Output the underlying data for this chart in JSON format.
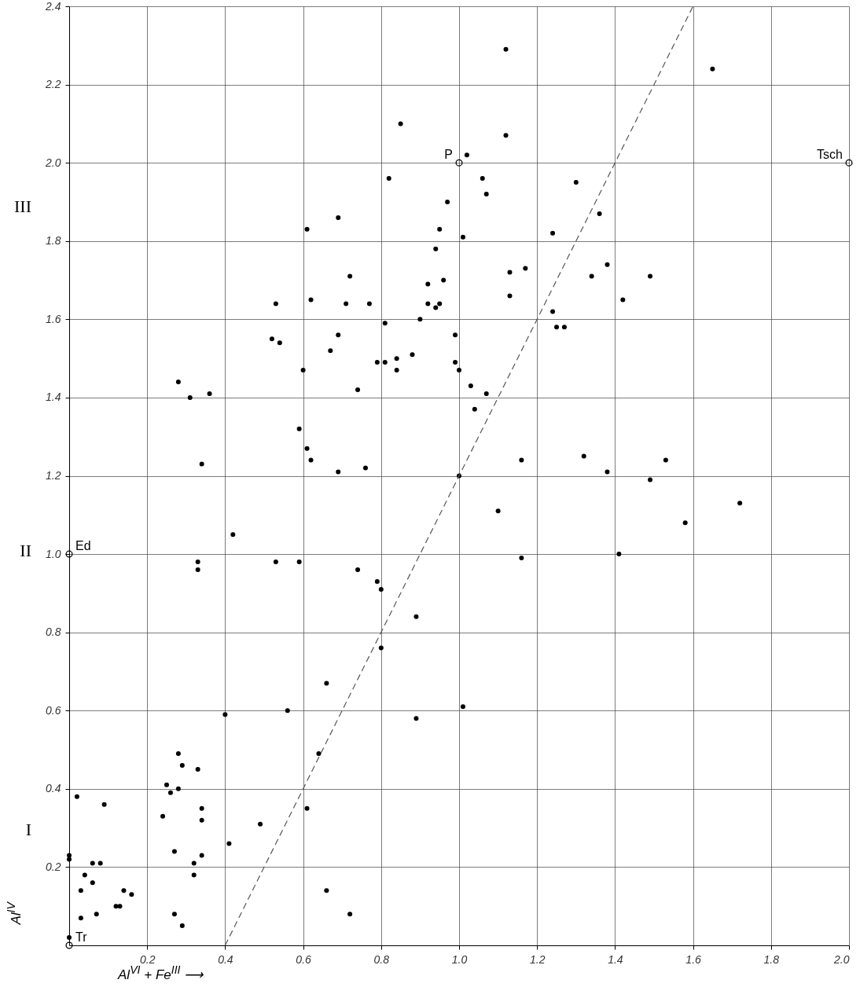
{
  "chart_data": {
    "type": "scatter",
    "xlabel": "Al$^{VI}$ + Fe$^{III}$ ⟶",
    "ylabel": "Al$^{IV}$",
    "xlim": [
      0,
      2.0
    ],
    "ylim": [
      0,
      2.4
    ],
    "xticks": [
      0.2,
      0.4,
      0.6,
      0.8,
      {
        "value": 1.0,
        "label": "1.0"
      },
      1.2,
      1.4,
      1.6,
      1.8,
      {
        "value": 2.0,
        "label": "2.0"
      }
    ],
    "yticks": [
      0.2,
      0.4,
      0.6,
      0.8,
      {
        "value": 1.0,
        "label": "1.0"
      },
      1.2,
      1.4,
      1.6,
      1.8,
      {
        "value": 2.0,
        "label": "2.0"
      },
      2.2,
      2.4
    ],
    "grid": true,
    "series": [
      {
        "color": "#000000",
        "marker": "circle",
        "x": [
          1.12,
          1.65,
          0.85,
          1.12,
          1.02,
          0.82,
          1.06,
          1.07,
          1.3,
          0.97,
          0.69,
          1.36,
          0.61,
          0.95,
          1.01,
          1.24,
          0.94,
          1.13,
          1.17,
          0.72,
          1.34,
          1.38,
          1.49,
          0.96,
          0.92,
          1.13,
          0.53,
          0.71,
          0.77,
          0.92,
          0.95,
          0.94,
          0.62,
          1.42,
          0.9,
          0.81,
          1.24,
          1.25,
          1.27,
          0.52,
          0.54,
          0.69,
          0.99,
          0.67,
          0.84,
          0.88,
          0.79,
          0.81,
          0.6,
          0.84,
          0.74,
          0.99,
          1.0,
          1.03,
          1.04,
          1.07,
          0.28,
          0.31,
          0.36,
          0.34,
          0.59,
          0.61,
          0.62,
          0.69,
          0.76,
          1.0,
          0.42,
          0.33,
          0.33,
          0.53,
          0.59,
          0.74,
          0.79,
          0.8,
          0.89,
          1.16,
          1.1,
          1.16,
          1.32,
          1.38,
          1.49,
          1.53,
          1.58,
          1.72,
          1.41,
          0.66,
          0.56,
          0.4,
          0.89,
          1.01,
          0.8,
          0.64,
          0.61,
          0.49,
          0.41,
          0.66,
          0.72,
          0.28,
          0.29,
          0.33,
          0.25,
          0.28,
          0.26,
          0.34,
          0.34,
          0.24,
          0.27,
          0.34,
          0.32,
          0.32,
          0.27,
          0.29,
          0.02,
          0.09,
          0.0,
          0.0,
          0.06,
          0.08,
          0.04,
          0.06,
          0.03,
          0.14,
          0.16,
          0.12,
          0.13,
          0.07,
          0.03,
          0.0
        ],
        "values": [
          2.29,
          2.24,
          2.1,
          2.07,
          2.02,
          1.96,
          1.96,
          1.92,
          1.95,
          1.9,
          1.86,
          1.87,
          1.83,
          1.83,
          1.81,
          1.82,
          1.78,
          1.72,
          1.73,
          1.71,
          1.71,
          1.74,
          1.71,
          1.7,
          1.69,
          1.66,
          1.64,
          1.64,
          1.64,
          1.64,
          1.64,
          1.63,
          1.65,
          1.65,
          1.6,
          1.59,
          1.62,
          1.58,
          1.58,
          1.55,
          1.54,
          1.56,
          1.56,
          1.52,
          1.5,
          1.51,
          1.49,
          1.49,
          1.47,
          1.47,
          1.42,
          1.49,
          1.47,
          1.43,
          1.37,
          1.41,
          1.44,
          1.4,
          1.41,
          1.23,
          1.32,
          1.27,
          1.24,
          1.21,
          1.22,
          1.2,
          1.05,
          0.98,
          0.96,
          0.98,
          0.98,
          0.96,
          0.93,
          0.91,
          0.84,
          1.24,
          1.11,
          0.99,
          1.25,
          1.21,
          1.19,
          1.24,
          1.08,
          1.13,
          1.0,
          0.67,
          0.6,
          0.59,
          0.58,
          0.61,
          0.76,
          0.49,
          0.35,
          0.31,
          0.26,
          0.14,
          0.08,
          0.49,
          0.46,
          0.45,
          0.41,
          0.4,
          0.39,
          0.35,
          0.32,
          0.33,
          0.24,
          0.23,
          0.21,
          0.18,
          0.08,
          0.05,
          0.38,
          0.36,
          0.23,
          0.22,
          0.21,
          0.21,
          0.18,
          0.16,
          0.14,
          0.14,
          0.13,
          0.1,
          0.1,
          0.08,
          0.07,
          0.02
        ]
      },
      {
        "color": "#000000",
        "marker": "circle",
        "x": [
          0.0,
          0.0,
          1.0,
          2.0
        ],
        "values": [
          0.0,
          1.0,
          2.0,
          2.0
        ]
      },
      {
        "type": "line",
        "color": "#555555",
        "line_style": "dashed",
        "x": [
          0.4,
          1.6
        ],
        "values": [
          0.0,
          2.4
        ]
      }
    ],
    "annotations": [
      {
        "text": "Tr",
        "x": 0.0,
        "y": 0.0
      },
      {
        "text": "Ed",
        "x": 0.0,
        "y": 1.0
      },
      {
        "text": "P",
        "x": 1.0,
        "y": 2.0
      },
      {
        "text": "Tsch",
        "x": 2.0,
        "y": 2.0
      },
      "III",
      "II",
      "I"
    ]
  }
}
